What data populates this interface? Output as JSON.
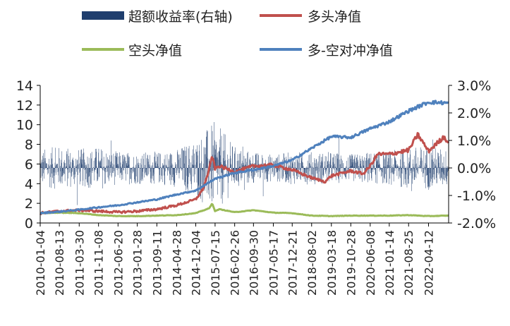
{
  "chart_data": {
    "type": "line",
    "title": "",
    "xlabel": "",
    "ylabel": "",
    "x_ticks": [
      "2010-01-04",
      "2010-08-13",
      "2011-03-30",
      "2011-11-08",
      "2012-06-20",
      "2013-01-28",
      "2013-09-11",
      "2014-04-28",
      "2014-12-04",
      "2015-07-15",
      "2016-02-26",
      "2016-09-30",
      "2017-05-17",
      "2017-12-21",
      "2018-08-02",
      "2019-03-18",
      "2019-10-28",
      "2020-06-08",
      "2021-01-14",
      "2021-08-25",
      "2022-04-12"
    ],
    "left_axis": {
      "ticks": [
        "0",
        "2",
        "4",
        "6",
        "8",
        "10",
        "12",
        "14"
      ],
      "ylim": [
        0,
        14
      ]
    },
    "right_axis": {
      "ticks": [
        "-2.0%",
        "-1.0%",
        "0.0%",
        "1.0%",
        "2.0%",
        "3.0%"
      ],
      "ylim": [
        -2.0,
        3.0
      ],
      "unit": "%"
    },
    "legend": {
      "position": "top"
    },
    "series": [
      {
        "name": "超额收益率(右轴)",
        "kind": "bar",
        "axis": "right",
        "color": "#1F3E6E",
        "envelope_dates": [
          "2010-01-04",
          "2010-08-13",
          "2011-03-30",
          "2011-11-08",
          "2012-06-20",
          "2013-01-28",
          "2013-09-11",
          "2014-04-28",
          "2014-12-04",
          "2015-07-15",
          "2016-02-26",
          "2016-09-30",
          "2017-05-17",
          "2017-12-21",
          "2018-08-02",
          "2019-03-18",
          "2019-10-28",
          "2020-06-08",
          "2021-01-14",
          "2021-08-25",
          "2022-04-12",
          "2022-11-30"
        ],
        "envelope_amplitude_pct": [
          0.7,
          0.8,
          0.7,
          0.8,
          0.6,
          0.6,
          0.6,
          0.7,
          1.1,
          1.7,
          0.8,
          0.6,
          0.5,
          0.6,
          0.6,
          0.6,
          0.5,
          0.6,
          0.6,
          0.8,
          0.8,
          0.7
        ]
      },
      {
        "name": "多头净值",
        "kind": "line",
        "axis": "left",
        "color": "#C0504D",
        "x": [
          "2010-01-04",
          "2010-08-13",
          "2011-03-30",
          "2011-11-08",
          "2012-06-20",
          "2013-01-28",
          "2013-09-11",
          "2014-04-28",
          "2014-12-04",
          "2015-03-01",
          "2015-05-10",
          "2015-06-12",
          "2015-07-15",
          "2015-09-01",
          "2016-02-26",
          "2016-09-30",
          "2017-05-17",
          "2017-12-21",
          "2018-08-02",
          "2019-01-04",
          "2019-03-18",
          "2019-10-28",
          "2020-03-20",
          "2020-06-08",
          "2020-09-01",
          "2021-01-14",
          "2021-08-25",
          "2021-12-10",
          "2022-04-12",
          "2022-10-10",
          "2022-11-30"
        ],
        "y": [
          1.0,
          1.2,
          1.3,
          1.2,
          1.1,
          1.2,
          1.4,
          1.8,
          2.4,
          3.5,
          5.5,
          6.9,
          5.5,
          5.8,
          5.2,
          5.8,
          5.9,
          5.4,
          4.6,
          4.2,
          4.8,
          5.3,
          5.0,
          5.8,
          7.0,
          7.0,
          7.4,
          9.0,
          7.3,
          8.8,
          8.1
        ]
      },
      {
        "name": "空头净值",
        "kind": "line",
        "axis": "left",
        "color": "#9BBB59",
        "x": [
          "2010-01-04",
          "2010-08-13",
          "2011-03-30",
          "2011-11-08",
          "2012-06-20",
          "2013-01-28",
          "2013-09-11",
          "2014-04-28",
          "2014-12-04",
          "2015-05-10",
          "2015-06-12",
          "2015-07-15",
          "2015-09-01",
          "2016-02-26",
          "2016-09-30",
          "2017-05-17",
          "2017-12-21",
          "2018-08-02",
          "2019-03-18",
          "2019-10-28",
          "2020-06-08",
          "2021-01-14",
          "2021-08-25",
          "2022-04-12",
          "2022-11-30"
        ],
        "y": [
          1.0,
          1.05,
          1.0,
          0.8,
          0.7,
          0.7,
          0.75,
          0.8,
          1.0,
          1.5,
          2.0,
          1.2,
          1.4,
          1.1,
          1.3,
          1.05,
          1.0,
          0.75,
          0.7,
          0.75,
          0.75,
          0.75,
          0.8,
          0.7,
          0.75
        ]
      },
      {
        "name": "多-空对冲净值",
        "kind": "line",
        "axis": "left",
        "color": "#4F81BD",
        "x": [
          "2010-01-04",
          "2010-08-13",
          "2011-03-30",
          "2011-11-08",
          "2012-06-20",
          "2013-01-28",
          "2013-09-11",
          "2014-04-28",
          "2014-12-04",
          "2015-07-15",
          "2016-02-26",
          "2016-09-30",
          "2017-05-17",
          "2017-12-21",
          "2018-08-02",
          "2019-03-18",
          "2019-10-28",
          "2020-06-08",
          "2021-01-14",
          "2021-08-25",
          "2022-04-12",
          "2022-11-30"
        ],
        "y": [
          1.0,
          1.15,
          1.35,
          1.6,
          1.8,
          2.1,
          2.4,
          2.9,
          3.3,
          4.5,
          5.1,
          5.4,
          5.8,
          6.4,
          7.6,
          8.8,
          8.7,
          9.6,
          10.3,
          11.4,
          12.3,
          12.2
        ]
      }
    ]
  }
}
